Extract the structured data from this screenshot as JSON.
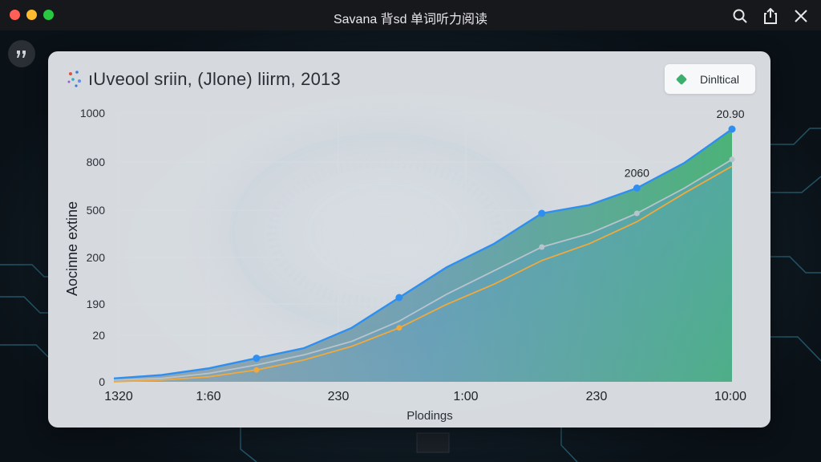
{
  "window": {
    "title": "Savana 背sd 单词听力阅读",
    "controls": [
      "close",
      "minimize",
      "maximize"
    ],
    "toolbar_icons": [
      "search-icon",
      "share-icon",
      "close-icon"
    ],
    "side_icon": "quote-icon"
  },
  "colors": {
    "red": "#fe5f57",
    "yellow": "#febc2e",
    "green": "#28c840",
    "blue": "#2f8ff0",
    "orange": "#f2a93b",
    "area_green": "#3cae6d",
    "area_blue": "#5a9fc8"
  },
  "chart_data": {
    "type": "area",
    "title": "ıUveool sriin, (Jlone) liirm, 2013",
    "xlabel": "Plodings",
    "ylabel": "Aocinne extine",
    "legend": {
      "label": "Dinltical",
      "placement": "top-right"
    },
    "grid": true,
    "x_tick_labels": [
      "1320",
      "1:60",
      "230",
      "1:00",
      "230",
      "10:00"
    ],
    "y_tick_labels": [
      "0",
      "20",
      "190",
      "200",
      "500",
      "800",
      "1000"
    ],
    "x": [
      0,
      1,
      2,
      3,
      4,
      5,
      6,
      7,
      8,
      9,
      10,
      11,
      12,
      13
    ],
    "series": [
      {
        "values": [
          2,
          4,
          8,
          14,
          20,
          32,
          50,
          68,
          82,
          100,
          105,
          115,
          130,
          150
        ],
        "style": "line-blue"
      },
      {
        "values": [
          0,
          1,
          3,
          7,
          13,
          21,
          32,
          46,
          58,
          72,
          82,
          95,
          112,
          128
        ],
        "style": "line-orange"
      },
      {
        "values": [
          1,
          2,
          5,
          10,
          16,
          24,
          36,
          52,
          66,
          80,
          88,
          100,
          115,
          132
        ],
        "style": "line-gray"
      }
    ],
    "annotations": [
      {
        "text": "2060",
        "x_index": 11
      },
      {
        "text": "20.90",
        "x_index": 13
      }
    ]
  }
}
